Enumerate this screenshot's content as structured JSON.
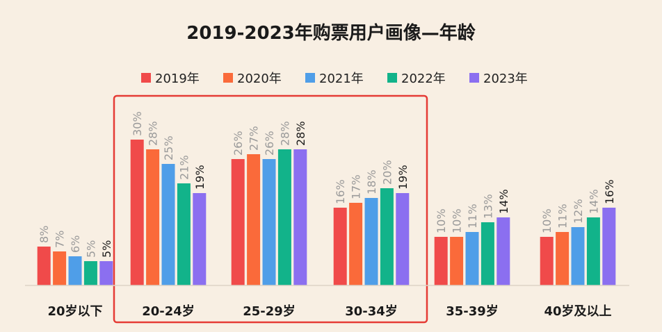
{
  "chart_data": {
    "type": "bar",
    "title": "2019-2023年购票用户画像—年龄",
    "xlabel": "",
    "ylabel": "",
    "ylim": [
      0,
      32
    ],
    "grid": false,
    "legend_position": "top-center",
    "categories": [
      "20岁以下",
      "20-24岁",
      "25-29岁",
      "30-34岁",
      "35-39岁",
      "40岁及以上"
    ],
    "value_suffix": "%",
    "series": [
      {
        "name": "2019年",
        "color": "#f04a4a",
        "values": [
          8,
          30,
          26,
          16,
          10,
          10
        ]
      },
      {
        "name": "2020年",
        "color": "#fa6a3a",
        "values": [
          7,
          28,
          27,
          17,
          10,
          11
        ]
      },
      {
        "name": "2021年",
        "color": "#4f9ee8",
        "values": [
          6,
          25,
          26,
          18,
          11,
          12
        ]
      },
      {
        "name": "2022年",
        "color": "#12b38a",
        "values": [
          5,
          21,
          28,
          20,
          13,
          14
        ]
      },
      {
        "name": "2023年",
        "color": "#8b6ff0",
        "values": [
          5,
          19,
          28,
          19,
          14,
          16
        ]
      }
    ],
    "highlight": {
      "categories": [
        "20-24岁",
        "25-29岁",
        "30-34岁"
      ],
      "color": "#e53b35"
    },
    "label_colors": {
      "default": "#9a9a9a",
      "last_series": "#1a1a1a"
    }
  }
}
